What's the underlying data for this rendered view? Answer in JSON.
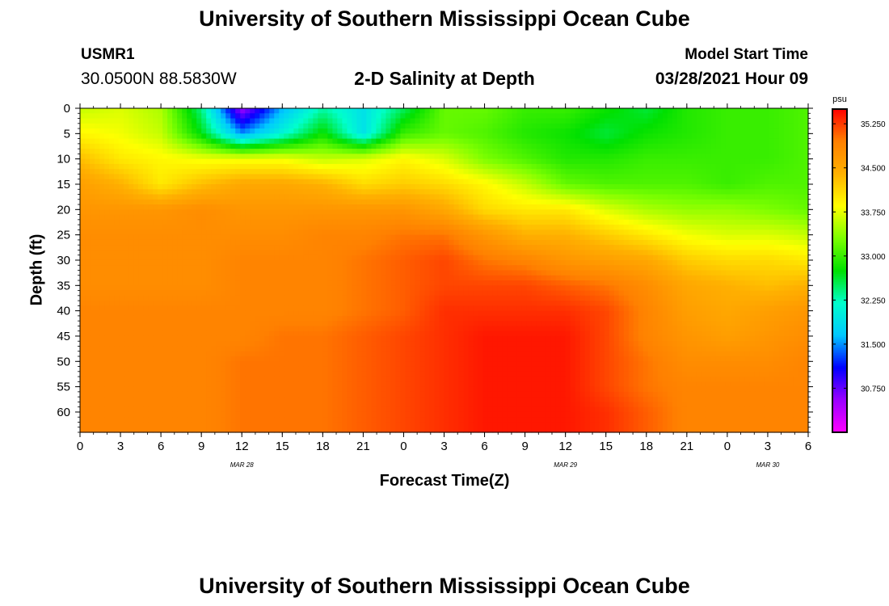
{
  "page": {
    "title_top": "University of Southern Mississippi Ocean Cube",
    "title_bottom": "University of Southern Mississippi Ocean Cube",
    "station_id": "USMR1",
    "station_coords": "30.0500N  88.5830W",
    "model_start_label": "Model Start Time",
    "model_start_value": "03/28/2021 Hour 09"
  },
  "chart_data": {
    "type": "heatmap",
    "title": "2-D Salinity at Depth",
    "xlabel": "Forecast Time(Z)",
    "ylabel": "Depth (ft)",
    "x_ticks": [
      "0",
      "3",
      "6",
      "9",
      "12",
      "15",
      "18",
      "21",
      "0",
      "3",
      "6",
      "9",
      "12",
      "15",
      "18",
      "21",
      "0",
      "3",
      "6"
    ],
    "x_range_hours": [
      0,
      54
    ],
    "y_ticks": [
      "0",
      "5",
      "10",
      "15",
      "20",
      "25",
      "30",
      "35",
      "40",
      "45",
      "50",
      "55",
      "60"
    ],
    "y_range_ft": [
      0,
      64
    ],
    "date_labels": [
      {
        "text": "MAR 28",
        "hour": 12
      },
      {
        "text": "MAR 29",
        "hour": 36
      },
      {
        "text": "MAR 30",
        "hour": 51
      }
    ],
    "colorbar": {
      "unit": "psu",
      "min": 30.0,
      "max": 35.5,
      "tick_values": [
        "35.250",
        "34.500",
        "33.750",
        "33.000",
        "32.250",
        "31.500",
        "30.750"
      ],
      "colors": [
        "#ff00ff",
        "#9900ff",
        "#0000ff",
        "#00c8ff",
        "#00ffcc",
        "#00e000",
        "#7cff00",
        "#ffff00",
        "#ffb000",
        "#ff8000",
        "#ff0000"
      ]
    },
    "salinity_grid": {
      "hours": [
        0,
        3,
        6,
        9,
        12,
        15,
        18,
        21,
        24,
        27,
        30,
        33,
        36,
        39,
        42,
        45,
        48,
        51,
        54
      ],
      "depths_ft": [
        0,
        5,
        10,
        15,
        20,
        25,
        30,
        35,
        40,
        45,
        50,
        55,
        60,
        64
      ],
      "values": [
        [
          33.6,
          33.7,
          33.5,
          32.4,
          30.5,
          31.6,
          32.3,
          31.9,
          32.5,
          33.2,
          33.2,
          33.0,
          33.0,
          32.8,
          32.6,
          32.9,
          33.0,
          33.0,
          33.1
        ],
        [
          33.9,
          33.8,
          33.6,
          32.7,
          31.5,
          32.1,
          32.8,
          31.9,
          33.0,
          33.2,
          33.1,
          32.9,
          32.8,
          32.6,
          32.8,
          32.9,
          33.0,
          33.0,
          33.1
        ],
        [
          34.3,
          34.0,
          33.9,
          33.8,
          33.8,
          33.8,
          33.6,
          33.7,
          33.9,
          33.7,
          33.3,
          33.1,
          32.9,
          32.9,
          33.0,
          33.0,
          33.0,
          33.0,
          33.1
        ],
        [
          34.6,
          34.4,
          34.0,
          34.3,
          34.5,
          34.5,
          34.4,
          34.1,
          34.2,
          34.1,
          33.9,
          33.6,
          33.2,
          33.1,
          33.1,
          33.1,
          33.0,
          33.1,
          33.1
        ],
        [
          34.7,
          34.7,
          34.7,
          34.8,
          34.7,
          34.7,
          34.7,
          34.7,
          34.7,
          34.5,
          34.1,
          34.0,
          34.0,
          33.7,
          33.5,
          33.4,
          33.4,
          33.3,
          33.2
        ],
        [
          34.8,
          34.8,
          34.8,
          34.8,
          34.8,
          34.8,
          34.9,
          34.9,
          35.0,
          35.0,
          34.7,
          34.4,
          34.4,
          34.2,
          34.0,
          33.8,
          33.7,
          33.7,
          33.6
        ],
        [
          34.8,
          34.8,
          34.8,
          34.8,
          34.9,
          34.9,
          34.9,
          35.0,
          35.1,
          35.2,
          35.0,
          34.9,
          34.7,
          34.6,
          34.5,
          34.2,
          34.1,
          34.1,
          34.0
        ],
        [
          34.8,
          34.8,
          34.8,
          34.8,
          34.9,
          34.9,
          34.9,
          35.0,
          35.1,
          35.2,
          35.2,
          35.2,
          35.1,
          35.0,
          34.8,
          34.5,
          34.4,
          34.3,
          34.4
        ],
        [
          34.9,
          34.9,
          34.9,
          34.9,
          34.9,
          34.9,
          34.9,
          35.0,
          35.1,
          35.3,
          35.3,
          35.3,
          35.3,
          35.2,
          34.9,
          34.6,
          34.5,
          34.6,
          34.7
        ],
        [
          34.9,
          34.9,
          34.9,
          34.9,
          34.9,
          35.0,
          35.0,
          35.1,
          35.2,
          35.3,
          35.4,
          35.4,
          35.4,
          35.2,
          34.9,
          34.7,
          34.6,
          34.7,
          34.8
        ],
        [
          34.9,
          34.9,
          34.9,
          34.9,
          35.0,
          35.0,
          35.0,
          35.1,
          35.2,
          35.3,
          35.4,
          35.4,
          35.4,
          35.2,
          35.0,
          34.8,
          34.8,
          34.8,
          34.9
        ],
        [
          34.9,
          34.9,
          34.9,
          34.9,
          35.0,
          35.0,
          35.0,
          35.1,
          35.2,
          35.3,
          35.4,
          35.4,
          35.4,
          35.2,
          35.0,
          34.9,
          34.9,
          34.9,
          34.9
        ],
        [
          34.9,
          34.9,
          34.9,
          34.9,
          35.0,
          35.0,
          35.0,
          35.1,
          35.2,
          35.3,
          35.4,
          35.4,
          35.4,
          35.3,
          35.1,
          34.9,
          34.9,
          34.9,
          34.9
        ],
        [
          34.9,
          34.9,
          34.9,
          34.9,
          35.0,
          35.0,
          35.0,
          35.1,
          35.2,
          35.3,
          35.4,
          35.4,
          35.4,
          35.3,
          35.1,
          34.9,
          34.9,
          34.9,
          34.9
        ]
      ]
    }
  }
}
